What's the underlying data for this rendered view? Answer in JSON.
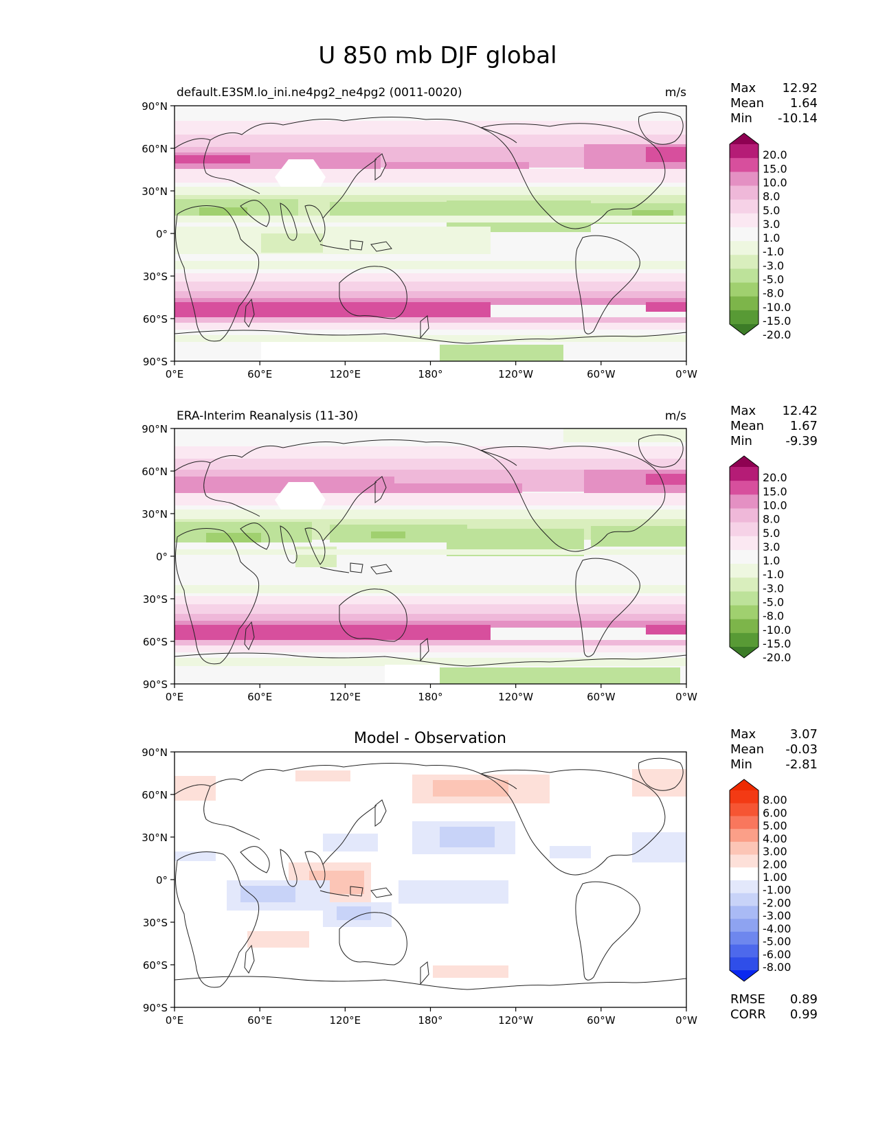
{
  "title": "U 850 mb DJF global",
  "units": "m/s",
  "lat_ticks": [
    "90°N",
    "60°N",
    "30°N",
    "0°",
    "30°S",
    "60°S",
    "90°S"
  ],
  "lon_ticks": [
    "0°E",
    "60°E",
    "120°E",
    "180°",
    "120°W",
    "60°W",
    "0°W"
  ],
  "stat_labels": {
    "max": "Max",
    "mean": "Mean",
    "min": "Min",
    "rmse": "RMSE",
    "corr": "CORR"
  },
  "colors": {
    "pos": [
      "#fbe8f2",
      "#f6d2e7",
      "#efb8d9",
      "#e490c3",
      "#d74f9d",
      "#b51c76",
      "#8e0152"
    ],
    "neg": [
      "#eef7e0",
      "#d9eebd",
      "#bde29a",
      "#a0d06f",
      "#7db54a",
      "#589a35",
      "#3c7c27"
    ],
    "near": "#f7f7f7",
    "diff_pos": [
      "#fde0d9",
      "#fcc5b6",
      "#fb9f88",
      "#f9775d",
      "#f65533",
      "#f33a14",
      "#ee2a00"
    ],
    "diff_neg": [
      "#e3e8fb",
      "#c8d3f8",
      "#a9baf5",
      "#8ea3f1",
      "#6e87ee",
      "#4d69ec",
      "#2f4ee9",
      "#0a28f0"
    ]
  },
  "panels": [
    {
      "id": "model",
      "title": "default.E3SM.lo_ini.ne4pg2_ne4pg2 (0011-0020)",
      "units": "m/s",
      "max": "12.92",
      "mean": "1.64",
      "min": "-10.14",
      "colorbar": {
        "type": "field",
        "levels": [
          "20.0",
          "15.0",
          "10.0",
          "8.0",
          "5.0",
          "3.0",
          "1.0",
          "-1.0",
          "-3.0",
          "-5.0",
          "-8.0",
          "-10.0",
          "-15.0",
          "-20.0"
        ]
      }
    },
    {
      "id": "obs",
      "title": "ERA-Interim Reanalysis (11-30)",
      "units": "m/s",
      "max": "12.42",
      "mean": "1.67",
      "min": "-9.39",
      "colorbar": {
        "type": "field",
        "levels": [
          "20.0",
          "15.0",
          "10.0",
          "8.0",
          "5.0",
          "3.0",
          "1.0",
          "-1.0",
          "-3.0",
          "-5.0",
          "-8.0",
          "-10.0",
          "-15.0",
          "-20.0"
        ]
      }
    },
    {
      "id": "diff",
      "title": "Model - Observation",
      "max": "3.07",
      "mean": "-0.03",
      "min": "-2.81",
      "rmse": "0.89",
      "corr": "0.99",
      "colorbar": {
        "type": "diff",
        "levels": [
          "8.00",
          "6.00",
          "5.00",
          "4.00",
          "3.00",
          "2.00",
          "1.00",
          "-1.00",
          "-2.00",
          "-3.00",
          "-4.00",
          "-5.00",
          "-6.00",
          "-8.00"
        ]
      }
    }
  ]
}
